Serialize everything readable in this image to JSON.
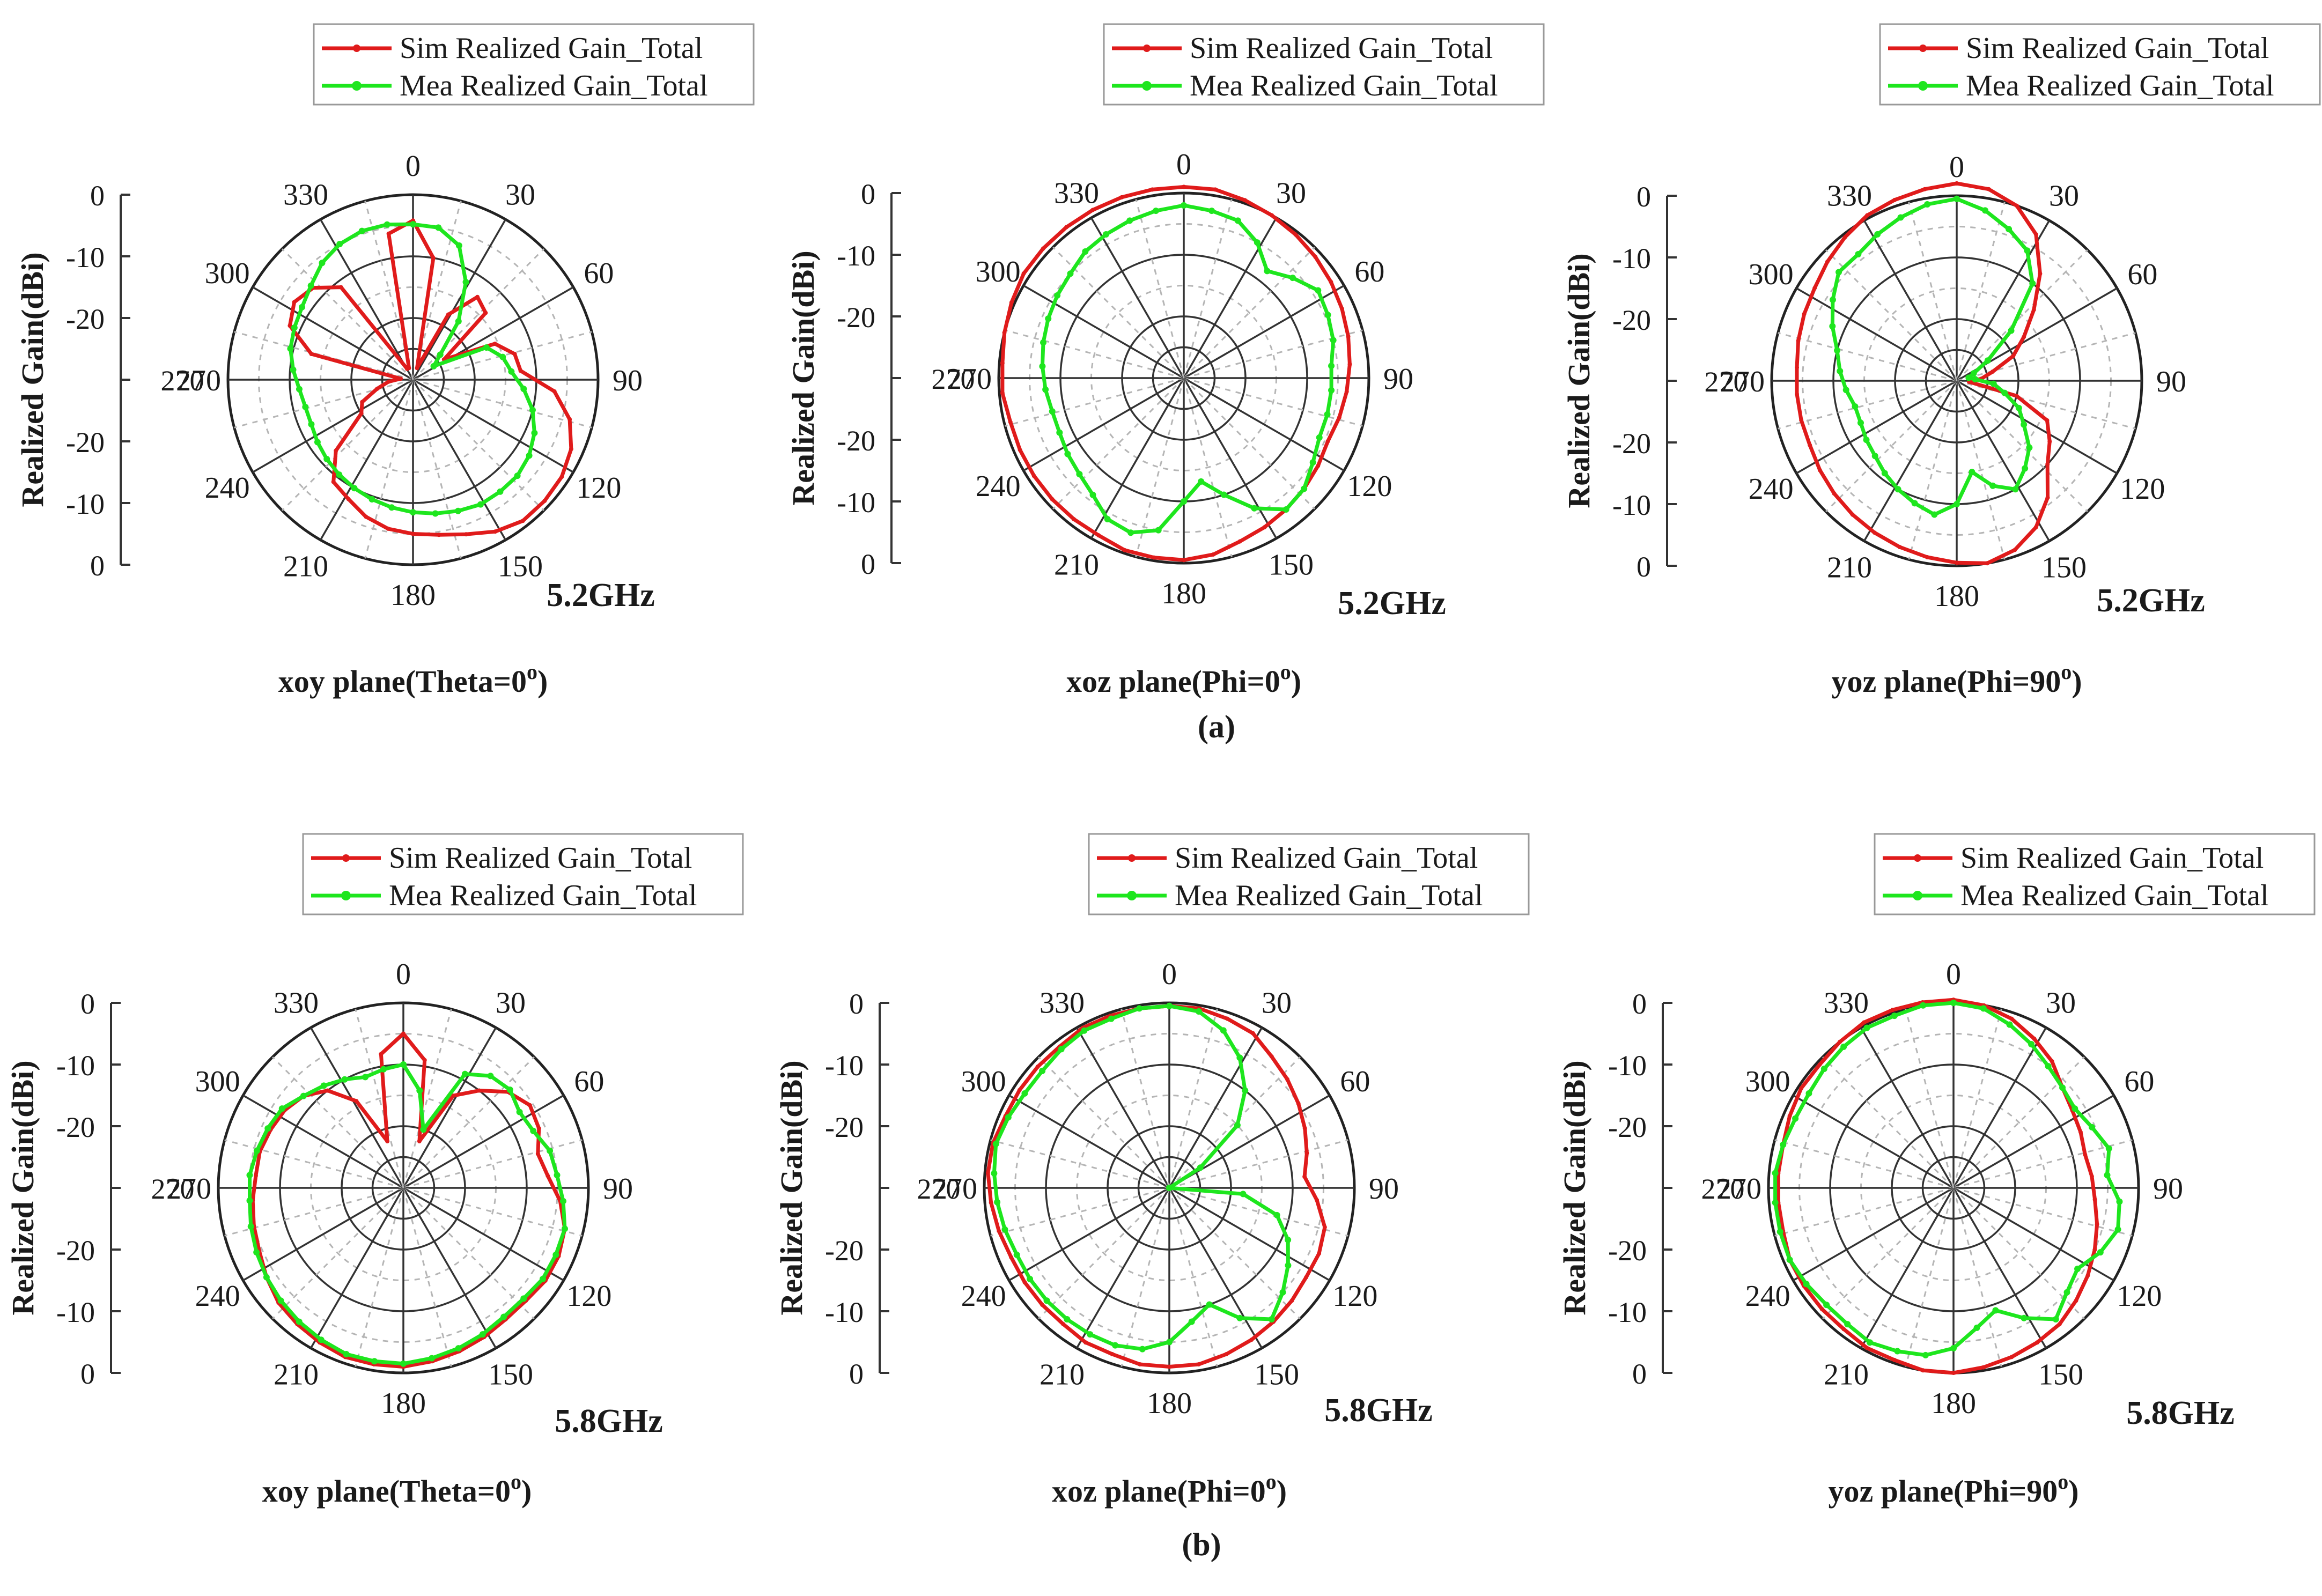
{
  "chart_data": [
    {
      "type": "polar-line",
      "panel": "a",
      "plane": "xoy plane(Theta=0",
      "plane_sup": "o",
      "plane_close": ")",
      "frequency": "5.2GHz",
      "ylabel": "Realized Gain(dBi)",
      "r_ticks": [
        "0",
        "-10",
        "-20",
        "270",
        "-20",
        "-10",
        "0"
      ],
      "r_range_dBi": [
        -30,
        0
      ],
      "angles": [
        "0",
        "30",
        "60",
        "90",
        "120",
        "150",
        "180",
        "210",
        "240",
        "270",
        "300",
        "330"
      ],
      "series": [
        {
          "name": "Sim Realized Gain_Total",
          "color": "#e01b1b",
          "values": [
            -4.2,
            -10,
            -28,
            -18,
            -13,
            -14,
            -24,
            -15.5,
            -13,
            -12.5,
            -7,
            -3.8,
            -2,
            -1.2,
            -1,
            -1,
            -2,
            -3.5,
            -4.5,
            -5,
            -5.5,
            -6.5,
            -8,
            -9,
            -13,
            -20,
            -21,
            -24,
            -26,
            -28,
            -13,
            -8.2,
            -7,
            -8,
            -11,
            -28,
            -28,
            -6,
            -4.2
          ]
        },
        {
          "name": "Mea Realized Gain_Total",
          "color": "#1ee61e",
          "values": [
            -4.8,
            -5,
            -7,
            -12,
            -18,
            -24,
            -26,
            -17,
            -15,
            -14,
            -12,
            -10,
            -8.5,
            -7.5,
            -7,
            -7,
            -7,
            -7.5,
            -8,
            -8.5,
            -9,
            -9.5,
            -10,
            -10.5,
            -11,
            -11.5,
            -12,
            -12,
            -11.5,
            -10.5,
            -9.5,
            -9,
            -8.5,
            -7.5,
            -6,
            -5,
            -4.5,
            -4.5,
            -4.8
          ]
        }
      ]
    },
    {
      "type": "polar-line",
      "panel": "a",
      "plane": "xoz plane(Phi=0",
      "plane_sup": "o",
      "plane_close": ")",
      "frequency": "5.2GHz",
      "ylabel": "Realized Gain(dBi)",
      "r_ticks": [
        "0",
        "-10",
        "-20",
        "270",
        "-20",
        "-10",
        "0"
      ],
      "r_range_dBi": [
        -30,
        0
      ],
      "angles": [
        "0",
        "30",
        "60",
        "90",
        "120",
        "150",
        "180",
        "210",
        "240",
        "270",
        "300",
        "330"
      ],
      "series": [
        {
          "name": "Sim Realized Gain_Total",
          "color": "#e01b1b",
          "values": [
            1,
            1,
            0.5,
            0,
            -0.5,
            -1,
            -1.5,
            -2,
            -2.5,
            -3,
            -3.5,
            -4,
            -4.5,
            -4,
            -3.5,
            -3,
            -2.5,
            -2,
            -1,
            -0.5,
            -0.5,
            -0.5,
            -1,
            -1,
            -1,
            -1,
            -1,
            -1,
            -0.5,
            -0.5,
            0,
            0.5,
            1,
            1,
            1,
            1,
            1,
            1,
            1
          ]
        },
        {
          "name": "Mea Realized Gain_Total",
          "color": "#1ee61e",
          "values": [
            -2,
            -2.5,
            -3,
            -5,
            -8,
            -6,
            -4,
            -4.5,
            -5,
            -6,
            -6,
            -6,
            -6,
            -5,
            -3.5,
            -3,
            -6,
            -10,
            -13,
            -10,
            -5,
            -3.5,
            -4,
            -6,
            -7,
            -7.5,
            -8,
            -8,
            -7.5,
            -7,
            -6.5,
            -6,
            -5.5,
            -5,
            -4,
            -3.5,
            -3,
            -2.5,
            -2
          ]
        }
      ]
    },
    {
      "type": "polar-line",
      "panel": "a",
      "plane": "yoz plane(Phi=90",
      "plane_sup": "o",
      "plane_close": ")",
      "frequency": "5.2GHz",
      "ylabel": "Realized Gain(dBi)",
      "r_ticks": [
        "0",
        "-10",
        "-20",
        "270",
        "-20",
        "-10",
        "0"
      ],
      "r_range_dBi": [
        -30,
        0
      ],
      "angles": [
        "0",
        "30",
        "60",
        "90",
        "120",
        "150",
        "180",
        "210",
        "240",
        "270",
        "300",
        "330"
      ],
      "series": [
        {
          "name": "Sim Realized Gain_Total",
          "color": "#e01b1b",
          "values": [
            2,
            1.5,
            0,
            -3,
            -8,
            -13,
            -17,
            -20,
            -24,
            -26,
            -28,
            -20,
            -14,
            -12,
            -10,
            -6,
            -3,
            -1,
            0,
            -0.5,
            -1,
            -1.5,
            -2,
            -2.5,
            -3,
            -3.5,
            -4,
            -4,
            -4,
            -4,
            -3.5,
            -3,
            -2.5,
            -1.5,
            -0.5,
            0.5,
            1,
            1.5,
            2
          ]
        },
        {
          "name": "Mea Realized Gain_Total",
          "color": "#1ee61e",
          "values": [
            -0.5,
            -2,
            -4,
            -6,
            -10,
            -18,
            -24,
            -27,
            -28,
            -27,
            -24,
            -22,
            -19,
            -17,
            -14,
            -12,
            -10,
            -12,
            -15,
            -10,
            -8,
            -9,
            -10,
            -11,
            -12,
            -12.5,
            -13,
            -13,
            -12,
            -11,
            -10,
            -8,
            -6,
            -4,
            -4,
            -3,
            -2,
            -1,
            -0.5
          ]
        }
      ]
    },
    {
      "type": "polar-line",
      "panel": "b",
      "plane": "xoy plane(Theta=0",
      "plane_sup": "o",
      "plane_close": ")",
      "frequency": "5.8GHz",
      "ylabel": "Realized Gain(dBi)",
      "r_ticks": [
        "0",
        "-10",
        "-20",
        "270",
        "-20",
        "-10",
        "0"
      ],
      "r_range_dBi": [
        -30,
        0
      ],
      "angles": [
        "0",
        "30",
        "60",
        "90",
        "120",
        "150",
        "180",
        "210",
        "240",
        "270",
        "300",
        "330"
      ],
      "series": [
        {
          "name": "Sim Realized Gain_Total",
          "color": "#e01b1b",
          "values": [
            -5,
            -9,
            -22,
            -13,
            -10,
            -7,
            -5.5,
            -6,
            -7.5,
            -6.5,
            -4.5,
            -3,
            -2.5,
            -2.5,
            -3,
            -3,
            -2.5,
            -2,
            -1.5,
            -1,
            -1,
            -1,
            -1.5,
            -2,
            -2.5,
            -3.5,
            -4.5,
            -5,
            -5.5,
            -6,
            -6,
            -6.5,
            -7,
            -8,
            -10,
            -14,
            -22,
            -8,
            -5
          ]
        },
        {
          "name": "Mea Realized Gain_Total",
          "color": "#1ee61e",
          "values": [
            -10,
            -14,
            -20,
            -9,
            -7,
            -6.5,
            -7.5,
            -7,
            -5.5,
            -5,
            -4,
            -3,
            -3,
            -3,
            -3.5,
            -3.5,
            -3,
            -2.5,
            -2,
            -1.5,
            -1.5,
            -1.5,
            -2,
            -2.5,
            -3,
            -3.5,
            -4,
            -4.5,
            -5,
            -5,
            -5.5,
            -6,
            -6.5,
            -8,
            -9,
            -10,
            -11,
            -10.5,
            -10
          ]
        }
      ]
    },
    {
      "type": "polar-line",
      "panel": "b",
      "plane": "xoz plane(Phi=0",
      "plane_sup": "o",
      "plane_close": ")",
      "frequency": "5.8GHz",
      "ylabel": "Realized Gain(dBi)",
      "r_ticks": [
        "0",
        "-10",
        "-20",
        "270",
        "-20",
        "-10",
        "0"
      ],
      "r_range_dBi": [
        -30,
        0
      ],
      "angles": [
        "0",
        "30",
        "60",
        "90",
        "120",
        "150",
        "180",
        "210",
        "240",
        "270",
        "300",
        "330"
      ],
      "series": [
        {
          "name": "Sim Realized Gain_Total",
          "color": "#e01b1b",
          "values": [
            -0.5,
            -0.5,
            -1,
            -1.5,
            -3,
            -4,
            -5,
            -6,
            -7,
            -8,
            -6,
            -4,
            -3.5,
            -3.5,
            -3,
            -2.5,
            -2,
            -1.5,
            -1,
            -1,
            -1,
            -1.5,
            -1.5,
            -2,
            -2,
            -2,
            -2,
            -1.5,
            -1,
            -0.5,
            -0.5,
            -1,
            -1,
            -1,
            -1,
            -0.5,
            -0.5,
            -0.5,
            -0.5
          ]
        },
        {
          "name": "Mea Realized Gain_Total",
          "color": "#1ee61e",
          "values": [
            -0.5,
            -1,
            -3,
            -6,
            -10,
            -15,
            -24,
            -30,
            -30,
            -30,
            -18,
            -12,
            -9,
            -7,
            -5,
            -3,
            -6,
            -10,
            -8,
            -5,
            -3.5,
            -3,
            -3,
            -3,
            -3,
            -3,
            -3,
            -2.5,
            -2,
            -1.5,
            -1,
            -1.5,
            -2,
            -2,
            -1.5,
            -1,
            -1,
            -0.5,
            -0.5
          ]
        }
      ]
    },
    {
      "type": "polar-line",
      "panel": "b",
      "plane": "yoz plane(Phi=90",
      "plane_sup": "o",
      "plane_close": ")",
      "frequency": "5.8GHz",
      "ylabel": "Realized Gain(dBi)",
      "r_ticks": [
        "0",
        "-10",
        "-20",
        "270",
        "-20",
        "-10",
        "0"
      ],
      "r_range_dBi": [
        -30,
        0
      ],
      "angles": [
        "0",
        "30",
        "60",
        "90",
        "120",
        "150",
        "180",
        "210",
        "240",
        "270",
        "300",
        "330"
      ],
      "series": [
        {
          "name": "Sim Realized Gain_Total",
          "color": "#e01b1b",
          "values": [
            0.5,
            0,
            -1,
            -2.5,
            -4,
            -6,
            -7,
            -7.5,
            -8,
            -7.5,
            -7,
            -6,
            -5,
            -4,
            -3,
            -2,
            -1.5,
            -1,
            -0.5,
            0,
            0,
            -0.5,
            -0.5,
            -1,
            -1,
            -1,
            -1,
            -1.5,
            -1.5,
            -1.5,
            -1.5,
            -1,
            -0.5,
            -0.5,
            0,
            0.5,
            0.5,
            0.5,
            0.5
          ]
        },
        {
          "name": "Mea Realized Gain_Total",
          "color": "#1ee61e",
          "values": [
            0,
            -0.5,
            -2,
            -3.5,
            -5,
            -6,
            -6.5,
            -5.5,
            -4,
            -5,
            -3,
            -2.5,
            -4,
            -6,
            -5,
            -3,
            -6,
            -9,
            -7,
            -4,
            -2.5,
            -2,
            -1.5,
            -2,
            -2,
            -1.5,
            -1,
            -1,
            -1,
            -1,
            -1.5,
            -2,
            -2,
            -1.5,
            -1,
            -0.5,
            -0.5,
            0,
            0
          ]
        }
      ]
    }
  ],
  "sub_labels": [
    "(a)",
    "(b)"
  ]
}
